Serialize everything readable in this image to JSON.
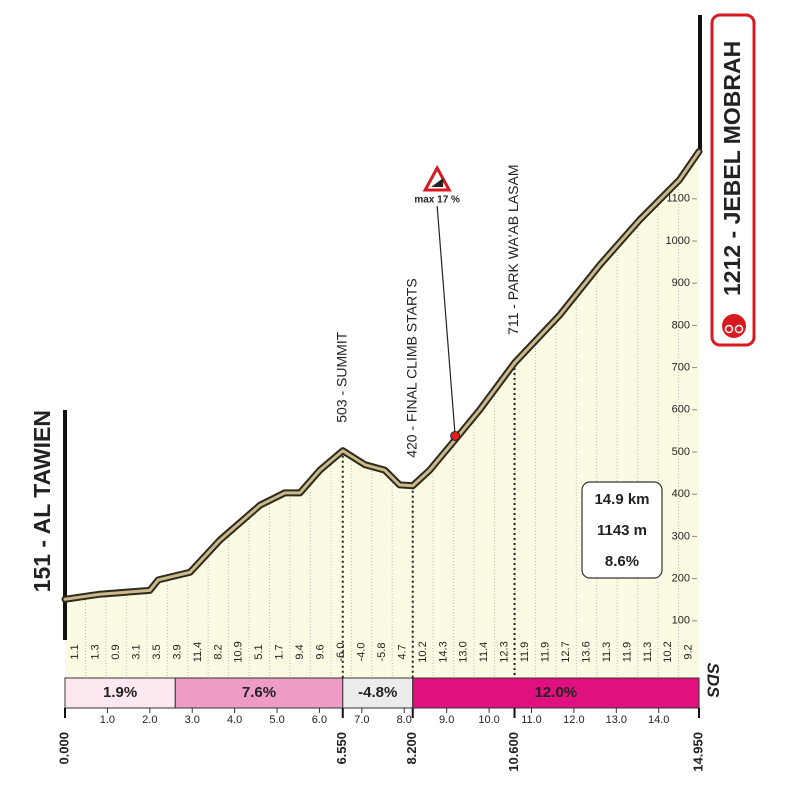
{
  "chart_data": {
    "type": "area",
    "x": [
      0,
      0.82,
      2.0,
      2.2,
      2.95,
      3.65,
      4.6,
      5.18,
      5.54,
      6.01,
      6.55,
      7.07,
      7.54,
      7.89,
      8.2,
      8.6,
      9.19,
      9.78,
      10.6,
      11.67,
      12.61,
      13.55,
      14.49,
      14.95
    ],
    "values": [
      151,
      163,
      172,
      197,
      215,
      291,
      374,
      403,
      403,
      457,
      503,
      470,
      457,
      422,
      420,
      457,
      528,
      600,
      711,
      825,
      943,
      1050,
      1145,
      1212
    ],
    "xlim": [
      0,
      14.95
    ],
    "ylim": [
      0,
      1500
    ],
    "yticks": [
      100,
      200,
      300,
      400,
      500,
      600,
      700,
      800,
      900,
      1000,
      1100
    ],
    "xticks": [
      {
        "value": 1,
        "label": "1.0"
      },
      {
        "value": 2,
        "label": "2.0"
      },
      {
        "value": 3,
        "label": "3.0"
      },
      {
        "value": 4,
        "label": "4.0"
      },
      {
        "value": 5,
        "label": "5.0"
      },
      {
        "value": 6,
        "label": "6.0"
      },
      {
        "value": 7,
        "label": "7.0"
      },
      {
        "value": 8,
        "label": "8.0"
      },
      {
        "value": 9,
        "label": "9.0"
      },
      {
        "value": 10,
        "label": "10.0"
      },
      {
        "value": 11,
        "label": "11.0"
      },
      {
        "value": 12,
        "label": "12.0"
      },
      {
        "value": 13,
        "label": "13.0"
      },
      {
        "value": 14,
        "label": "14.0"
      }
    ],
    "key_xticks": [
      {
        "value": 0,
        "label": "0.000"
      },
      {
        "value": 6.55,
        "label": "6.550"
      },
      {
        "value": 8.2,
        "label": "8.200"
      },
      {
        "value": 10.6,
        "label": "10.600"
      },
      {
        "value": 14.95,
        "label": "14.950"
      }
    ],
    "gradient_labels": [
      "1.1",
      "1.3",
      "0.9",
      "3.1",
      "3.5",
      "3.9",
      "11.4",
      "8.2",
      "10.9",
      "5.1",
      "1.7",
      "9.4",
      "9.6",
      "-6.0",
      "-4.0",
      "-5.8",
      "4.7",
      "10.2",
      "14.3",
      "13.0",
      "11.4",
      "12.3",
      "11.9",
      "11.9",
      "12.7",
      "13.6",
      "11.3",
      "11.9",
      "11.3",
      "10.2",
      "9.2"
    ],
    "sectors": [
      {
        "from": 0,
        "to": 2.6,
        "label": "1.9%",
        "color": "#fde8f1"
      },
      {
        "from": 2.6,
        "to": 6.55,
        "label": "7.6%",
        "color": "#ee9cc6"
      },
      {
        "from": 6.55,
        "to": 8.2,
        "label": "-4.8%",
        "color": "#ececec"
      },
      {
        "from": 8.2,
        "to": 14.95,
        "label": "12.0%",
        "color": "#e0117f"
      }
    ],
    "start_label": "151 - AL TAWIEN",
    "finish_label": "1212 - JEBEL MOBRAH",
    "points": [
      {
        "x": 6.55,
        "altitude": 503,
        "text": "503 - SUMMIT"
      },
      {
        "x": 8.2,
        "altitude": 420,
        "text": "420 - FINAL CLIMB STARTS"
      },
      {
        "x": 10.6,
        "altitude": 711,
        "text": "711 - PARK WA'AB LASAM"
      }
    ],
    "max_gradient": {
      "x": 9.2,
      "altitude": 538,
      "text": "max 17 %"
    },
    "stats": [
      "14.9 km",
      "1143 m",
      "8.6%"
    ],
    "logo": "SDS",
    "fill_color": "#fbfbe4",
    "line_color": "#c9b98c"
  }
}
